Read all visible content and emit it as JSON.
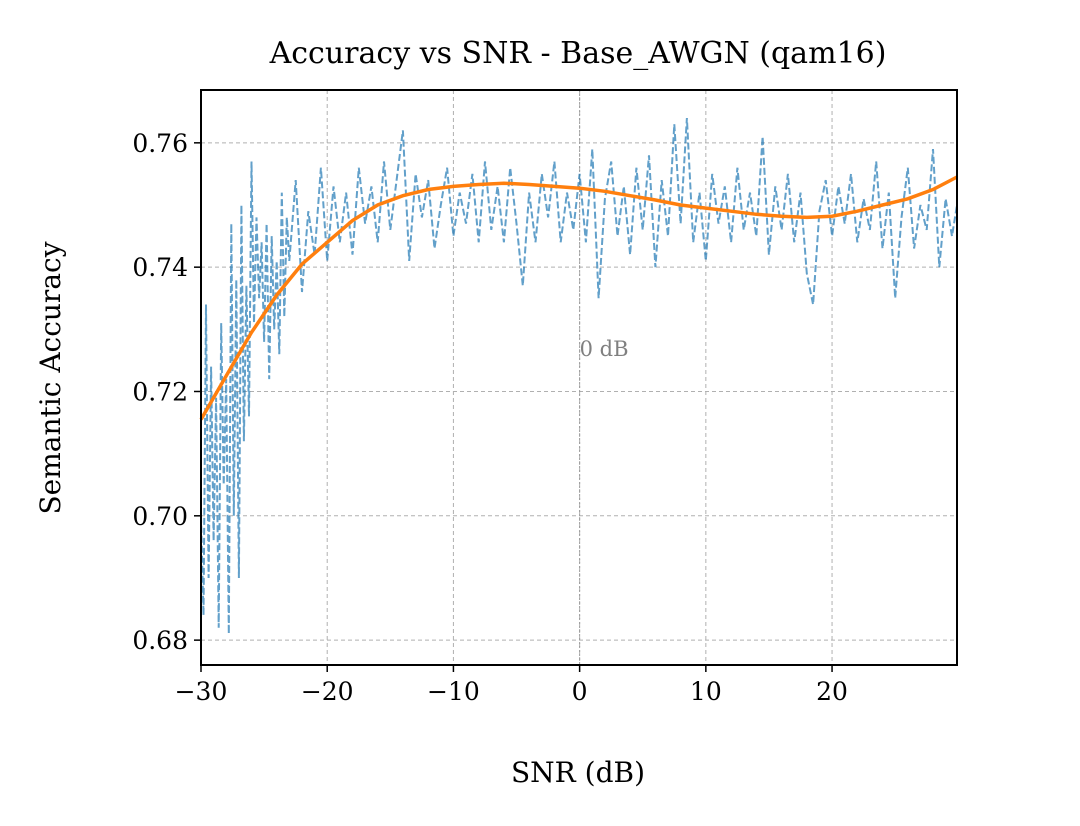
{
  "chart_data": {
    "type": "line",
    "title": "Accuracy vs SNR - Base_AWGN (qam16)",
    "xlabel": "SNR (dB)",
    "ylabel": "Semantic Accuracy",
    "xlim": [
      -30,
      29.9
    ],
    "ylim": [
      0.676,
      0.7685
    ],
    "x_ticks": [
      -30,
      -20,
      -10,
      0,
      10,
      20
    ],
    "x_tick_labels": [
      "−30",
      "−20",
      "−10",
      "0",
      "10",
      "20"
    ],
    "y_ticks": [
      0.68,
      0.7,
      0.72,
      0.74,
      0.76
    ],
    "y_tick_labels": [
      "0.68",
      "0.70",
      "0.72",
      "0.74",
      "0.76"
    ],
    "grid": true,
    "legend": "none",
    "annotations": [
      {
        "text": "0 dB",
        "x": 0,
        "y": 0.727
      }
    ],
    "vline": {
      "x": 0
    },
    "series": [
      {
        "style": "dashed",
        "color": "#1f77b4",
        "opacity": 0.7,
        "points": [
          [
            -30.0,
            0.7
          ],
          [
            -29.8,
            0.684
          ],
          [
            -29.6,
            0.734
          ],
          [
            -29.4,
            0.69
          ],
          [
            -29.2,
            0.724
          ],
          [
            -29.0,
            0.696
          ],
          [
            -28.8,
            0.719
          ],
          [
            -28.6,
            0.682
          ],
          [
            -28.4,
            0.731
          ],
          [
            -28.2,
            0.705
          ],
          [
            -28.0,
            0.722
          ],
          [
            -27.8,
            0.681
          ],
          [
            -27.6,
            0.747
          ],
          [
            -27.4,
            0.7
          ],
          [
            -27.2,
            0.738
          ],
          [
            -27.0,
            0.69
          ],
          [
            -26.8,
            0.75
          ],
          [
            -26.6,
            0.712
          ],
          [
            -26.4,
            0.737
          ],
          [
            -26.2,
            0.716
          ],
          [
            -26.0,
            0.757
          ],
          [
            -25.8,
            0.731
          ],
          [
            -25.6,
            0.748
          ],
          [
            -25.4,
            0.735
          ],
          [
            -25.2,
            0.744
          ],
          [
            -25.0,
            0.728
          ],
          [
            -24.8,
            0.747
          ],
          [
            -24.6,
            0.722
          ],
          [
            -24.4,
            0.745
          ],
          [
            -24.2,
            0.73
          ],
          [
            -24.0,
            0.741
          ],
          [
            -23.8,
            0.726
          ],
          [
            -23.6,
            0.752
          ],
          [
            -23.4,
            0.732
          ],
          [
            -23.2,
            0.748
          ],
          [
            -23.0,
            0.741
          ],
          [
            -22.5,
            0.754
          ],
          [
            -22.0,
            0.736
          ],
          [
            -21.5,
            0.749
          ],
          [
            -21.0,
            0.742
          ],
          [
            -20.5,
            0.756
          ],
          [
            -20.0,
            0.741
          ],
          [
            -19.5,
            0.753
          ],
          [
            -19.0,
            0.744
          ],
          [
            -18.5,
            0.752
          ],
          [
            -18.0,
            0.742
          ],
          [
            -17.5,
            0.756
          ],
          [
            -17.0,
            0.747
          ],
          [
            -16.5,
            0.753
          ],
          [
            -16.0,
            0.744
          ],
          [
            -15.5,
            0.757
          ],
          [
            -15.0,
            0.746
          ],
          [
            -14.5,
            0.754
          ],
          [
            -14.0,
            0.762
          ],
          [
            -13.5,
            0.741
          ],
          [
            -13.0,
            0.755
          ],
          [
            -12.5,
            0.748
          ],
          [
            -12.0,
            0.754
          ],
          [
            -11.5,
            0.743
          ],
          [
            -11.0,
            0.75
          ],
          [
            -10.5,
            0.756
          ],
          [
            -10.0,
            0.745
          ],
          [
            -9.5,
            0.752
          ],
          [
            -9.0,
            0.747
          ],
          [
            -8.5,
            0.755
          ],
          [
            -8.0,
            0.744
          ],
          [
            -7.5,
            0.757
          ],
          [
            -7.0,
            0.746
          ],
          [
            -6.5,
            0.753
          ],
          [
            -6.0,
            0.744
          ],
          [
            -5.5,
            0.756
          ],
          [
            -5.0,
            0.747
          ],
          [
            -4.5,
            0.737
          ],
          [
            -4.0,
            0.752
          ],
          [
            -3.5,
            0.744
          ],
          [
            -3.0,
            0.755
          ],
          [
            -2.5,
            0.748
          ],
          [
            -2.0,
            0.757
          ],
          [
            -1.5,
            0.744
          ],
          [
            -1.0,
            0.752
          ],
          [
            -0.5,
            0.746
          ],
          [
            0.0,
            0.755
          ],
          [
            0.5,
            0.744
          ],
          [
            1.0,
            0.759
          ],
          [
            1.5,
            0.735
          ],
          [
            2.0,
            0.751
          ],
          [
            2.5,
            0.757
          ],
          [
            3.0,
            0.745
          ],
          [
            3.5,
            0.753
          ],
          [
            4.0,
            0.742
          ],
          [
            4.5,
            0.756
          ],
          [
            5.0,
            0.746
          ],
          [
            5.5,
            0.758
          ],
          [
            6.0,
            0.74
          ],
          [
            6.5,
            0.754
          ],
          [
            7.0,
            0.745
          ],
          [
            7.5,
            0.763
          ],
          [
            8.0,
            0.747
          ],
          [
            8.5,
            0.764
          ],
          [
            9.0,
            0.744
          ],
          [
            9.5,
            0.752
          ],
          [
            10.0,
            0.741
          ],
          [
            10.5,
            0.755
          ],
          [
            11.0,
            0.747
          ],
          [
            11.5,
            0.753
          ],
          [
            12.0,
            0.744
          ],
          [
            12.5,
            0.756
          ],
          [
            13.0,
            0.746
          ],
          [
            13.5,
            0.752
          ],
          [
            14.0,
            0.745
          ],
          [
            14.5,
            0.761
          ],
          [
            15.0,
            0.742
          ],
          [
            15.5,
            0.753
          ],
          [
            16.0,
            0.746
          ],
          [
            16.5,
            0.755
          ],
          [
            17.0,
            0.744
          ],
          [
            17.5,
            0.752
          ],
          [
            18.0,
            0.739
          ],
          [
            18.5,
            0.734
          ],
          [
            19.0,
            0.749
          ],
          [
            19.5,
            0.754
          ],
          [
            20.0,
            0.745
          ],
          [
            20.5,
            0.753
          ],
          [
            21.0,
            0.747
          ],
          [
            21.5,
            0.755
          ],
          [
            22.0,
            0.744
          ],
          [
            22.5,
            0.751
          ],
          [
            23.0,
            0.746
          ],
          [
            23.5,
            0.757
          ],
          [
            24.0,
            0.743
          ],
          [
            24.5,
            0.752
          ],
          [
            25.0,
            0.735
          ],
          [
            25.5,
            0.748
          ],
          [
            26.0,
            0.756
          ],
          [
            26.5,
            0.743
          ],
          [
            27.0,
            0.75
          ],
          [
            27.5,
            0.746
          ],
          [
            28.0,
            0.759
          ],
          [
            28.5,
            0.74
          ],
          [
            29.0,
            0.751
          ],
          [
            29.5,
            0.745
          ],
          [
            29.9,
            0.75
          ]
        ]
      },
      {
        "style": "solid",
        "color": "#ff7f0e",
        "points": [
          [
            -30,
            0.7155
          ],
          [
            -28,
            0.7225
          ],
          [
            -26,
            0.7295
          ],
          [
            -24,
            0.7355
          ],
          [
            -22,
            0.7405
          ],
          [
            -20,
            0.744
          ],
          [
            -18,
            0.7475
          ],
          [
            -16,
            0.75
          ],
          [
            -14,
            0.7515
          ],
          [
            -12,
            0.7525
          ],
          [
            -10,
            0.753
          ],
          [
            -8,
            0.7533
          ],
          [
            -6,
            0.7535
          ],
          [
            -4,
            0.7533
          ],
          [
            -2,
            0.753
          ],
          [
            0,
            0.7527
          ],
          [
            2,
            0.7522
          ],
          [
            4,
            0.7515
          ],
          [
            6,
            0.7508
          ],
          [
            8,
            0.75
          ],
          [
            10,
            0.7495
          ],
          [
            12,
            0.749
          ],
          [
            14,
            0.7485
          ],
          [
            16,
            0.7482
          ],
          [
            18,
            0.748
          ],
          [
            20,
            0.7482
          ],
          [
            22,
            0.749
          ],
          [
            24,
            0.75
          ],
          [
            26,
            0.751
          ],
          [
            28,
            0.7525
          ],
          [
            29.9,
            0.7545
          ]
        ]
      }
    ]
  }
}
